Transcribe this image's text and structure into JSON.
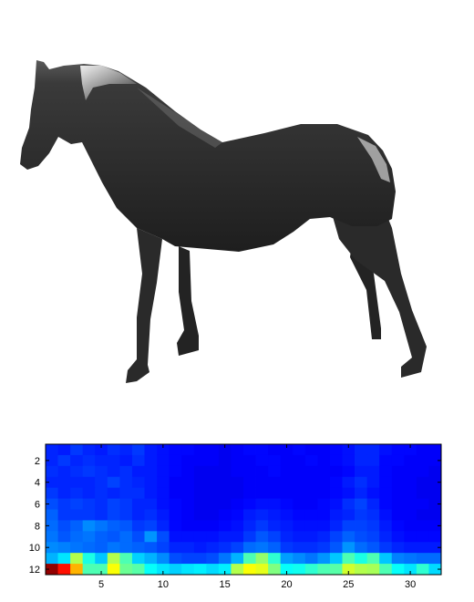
{
  "figure": {
    "render_name": "horse-3d-render"
  },
  "chart_data": {
    "type": "heatmap",
    "colormap": "jet",
    "color_range": [
      0,
      1
    ],
    "rows": 12,
    "cols": 32,
    "x_ticks": [
      5,
      10,
      15,
      20,
      25,
      30
    ],
    "y_ticks": [
      2,
      4,
      6,
      8,
      10,
      12
    ],
    "x_range": [
      0.5,
      32.5
    ],
    "y_range": [
      0.5,
      12.5
    ],
    "y_direction": "reverse",
    "grid": false,
    "values": [
      [
        0.16,
        0.15,
        0.18,
        0.16,
        0.15,
        0.17,
        0.16,
        0.18,
        0.15,
        0.14,
        0.13,
        0.13,
        0.12,
        0.12,
        0.11,
        0.12,
        0.13,
        0.13,
        0.12,
        0.12,
        0.13,
        0.12,
        0.12,
        0.13,
        0.14,
        0.16,
        0.16,
        0.14,
        0.13,
        0.13,
        0.12,
        0.12
      ],
      [
        0.16,
        0.18,
        0.16,
        0.17,
        0.16,
        0.16,
        0.15,
        0.17,
        0.15,
        0.14,
        0.13,
        0.12,
        0.12,
        0.12,
        0.11,
        0.12,
        0.12,
        0.13,
        0.13,
        0.12,
        0.12,
        0.13,
        0.12,
        0.13,
        0.14,
        0.16,
        0.16,
        0.13,
        0.13,
        0.12,
        0.12,
        0.12
      ],
      [
        0.17,
        0.16,
        0.17,
        0.18,
        0.17,
        0.16,
        0.17,
        0.15,
        0.15,
        0.14,
        0.13,
        0.12,
        0.11,
        0.11,
        0.11,
        0.12,
        0.12,
        0.12,
        0.13,
        0.12,
        0.12,
        0.12,
        0.12,
        0.12,
        0.13,
        0.15,
        0.15,
        0.13,
        0.12,
        0.12,
        0.12,
        0.11
      ],
      [
        0.16,
        0.16,
        0.16,
        0.16,
        0.17,
        0.19,
        0.17,
        0.16,
        0.15,
        0.14,
        0.12,
        0.12,
        0.11,
        0.11,
        0.11,
        0.11,
        0.12,
        0.12,
        0.12,
        0.12,
        0.12,
        0.12,
        0.12,
        0.13,
        0.15,
        0.17,
        0.15,
        0.13,
        0.12,
        0.12,
        0.11,
        0.11
      ],
      [
        0.18,
        0.16,
        0.17,
        0.16,
        0.17,
        0.16,
        0.17,
        0.17,
        0.15,
        0.14,
        0.12,
        0.12,
        0.11,
        0.11,
        0.11,
        0.11,
        0.12,
        0.12,
        0.12,
        0.12,
        0.12,
        0.12,
        0.12,
        0.13,
        0.14,
        0.16,
        0.14,
        0.13,
        0.12,
        0.12,
        0.11,
        0.11
      ],
      [
        0.2,
        0.18,
        0.19,
        0.18,
        0.17,
        0.19,
        0.18,
        0.16,
        0.16,
        0.14,
        0.13,
        0.12,
        0.11,
        0.11,
        0.11,
        0.12,
        0.13,
        0.14,
        0.14,
        0.13,
        0.12,
        0.12,
        0.13,
        0.14,
        0.17,
        0.19,
        0.16,
        0.13,
        0.12,
        0.12,
        0.12,
        0.11
      ],
      [
        0.22,
        0.18,
        0.18,
        0.18,
        0.17,
        0.19,
        0.18,
        0.16,
        0.17,
        0.15,
        0.13,
        0.12,
        0.11,
        0.11,
        0.12,
        0.13,
        0.15,
        0.16,
        0.15,
        0.14,
        0.13,
        0.13,
        0.13,
        0.15,
        0.16,
        0.18,
        0.17,
        0.14,
        0.12,
        0.12,
        0.11,
        0.11
      ],
      [
        0.23,
        0.2,
        0.22,
        0.26,
        0.24,
        0.22,
        0.21,
        0.18,
        0.19,
        0.16,
        0.13,
        0.12,
        0.12,
        0.12,
        0.13,
        0.14,
        0.16,
        0.18,
        0.16,
        0.15,
        0.14,
        0.14,
        0.14,
        0.16,
        0.19,
        0.19,
        0.18,
        0.15,
        0.13,
        0.12,
        0.12,
        0.12
      ],
      [
        0.24,
        0.21,
        0.23,
        0.24,
        0.22,
        0.21,
        0.23,
        0.2,
        0.27,
        0.2,
        0.14,
        0.14,
        0.14,
        0.14,
        0.15,
        0.15,
        0.18,
        0.21,
        0.19,
        0.16,
        0.15,
        0.15,
        0.16,
        0.19,
        0.22,
        0.2,
        0.19,
        0.16,
        0.14,
        0.13,
        0.13,
        0.13
      ],
      [
        0.26,
        0.25,
        0.24,
        0.23,
        0.22,
        0.24,
        0.23,
        0.22,
        0.21,
        0.19,
        0.16,
        0.16,
        0.15,
        0.16,
        0.17,
        0.19,
        0.23,
        0.24,
        0.22,
        0.18,
        0.17,
        0.17,
        0.18,
        0.21,
        0.27,
        0.23,
        0.21,
        0.18,
        0.16,
        0.15,
        0.15,
        0.15
      ],
      [
        0.3,
        0.35,
        0.55,
        0.4,
        0.32,
        0.55,
        0.45,
        0.33,
        0.3,
        0.26,
        0.2,
        0.19,
        0.19,
        0.2,
        0.24,
        0.3,
        0.45,
        0.52,
        0.42,
        0.28,
        0.26,
        0.24,
        0.27,
        0.32,
        0.45,
        0.4,
        0.45,
        0.32,
        0.25,
        0.24,
        0.23,
        0.23
      ],
      [
        0.98,
        0.86,
        0.7,
        0.45,
        0.45,
        0.62,
        0.48,
        0.46,
        0.38,
        0.35,
        0.33,
        0.35,
        0.36,
        0.34,
        0.36,
        0.55,
        0.62,
        0.6,
        0.5,
        0.38,
        0.39,
        0.42,
        0.45,
        0.46,
        0.58,
        0.55,
        0.54,
        0.45,
        0.38,
        0.35,
        0.42,
        0.34
      ]
    ]
  }
}
